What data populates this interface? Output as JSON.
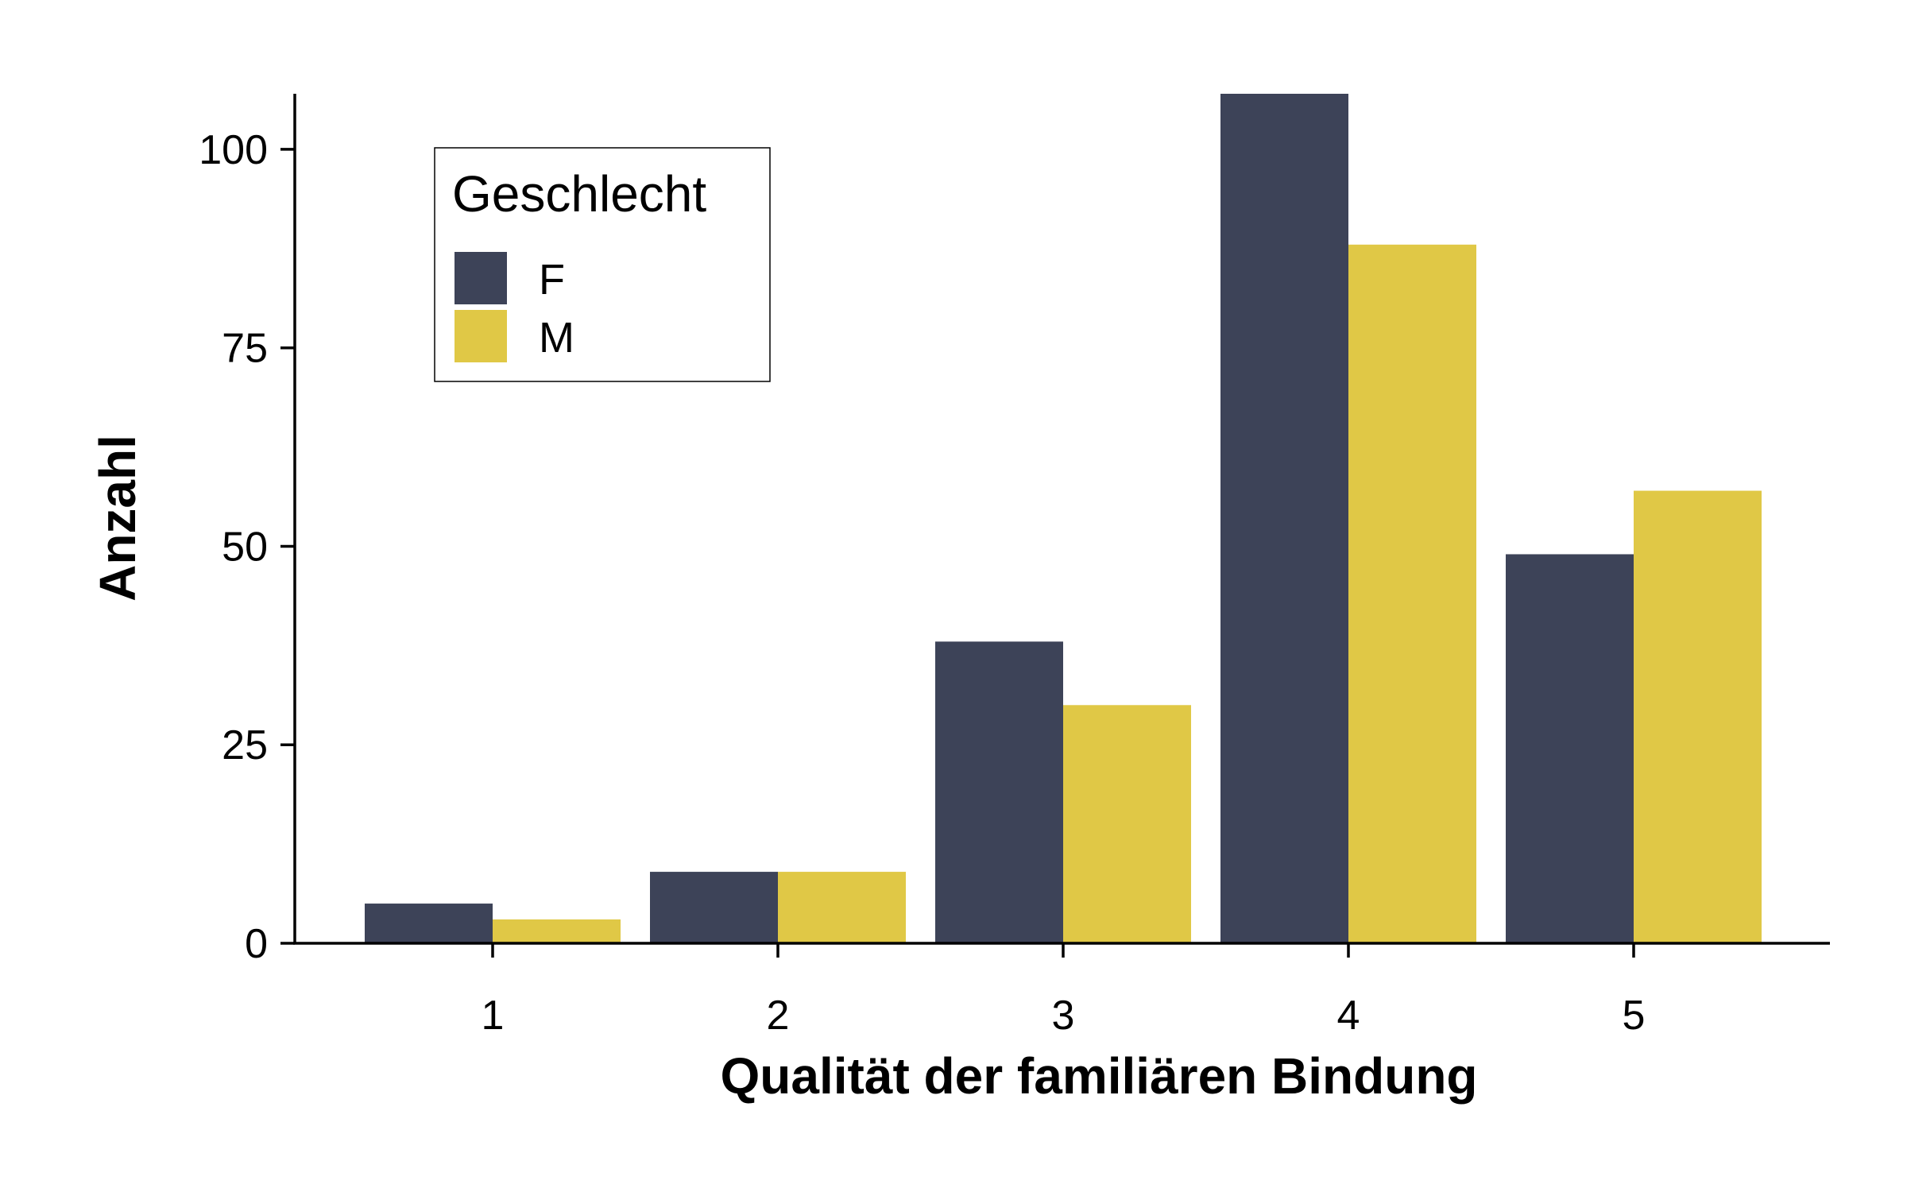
{
  "chart_data": {
    "type": "bar",
    "title": "",
    "xlabel": "Qualität der familiären Bindung",
    "ylabel": "Anzahl",
    "categories": [
      "1",
      "2",
      "3",
      "4",
      "5"
    ],
    "series": [
      {
        "name": "F",
        "color": "#3d4358",
        "values": [
          5,
          9,
          38,
          107,
          49
        ]
      },
      {
        "name": "M",
        "color": "#e0c846",
        "values": [
          3,
          9,
          30,
          88,
          57
        ]
      }
    ],
    "ylim": [
      0,
      107
    ],
    "yticks": [
      0,
      25,
      50,
      75,
      100
    ],
    "yticklabels": [
      "0",
      "25",
      "50",
      "75",
      "100"
    ],
    "grid": false,
    "legend": {
      "title": "Geschlecht",
      "placement": "top-left",
      "entries": [
        "F",
        "M"
      ]
    }
  }
}
